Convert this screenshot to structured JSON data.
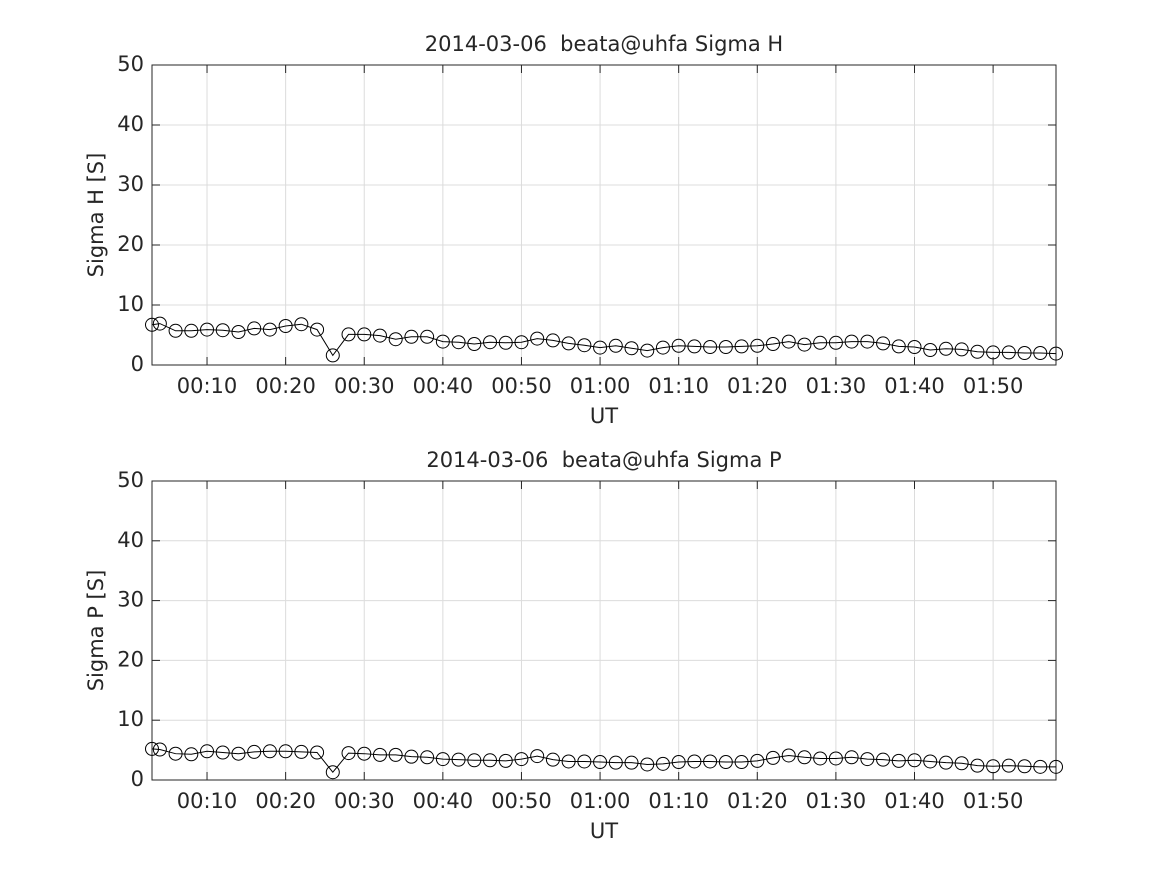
{
  "chart_data": [
    {
      "type": "line",
      "title": "2014-03-06  beata@uhfa Sigma H",
      "xlabel": "UT",
      "ylabel": "Sigma H [S]",
      "x": [
        3,
        4,
        6,
        8,
        10,
        12,
        14,
        16,
        18,
        20,
        22,
        24,
        26,
        28,
        30,
        32,
        34,
        36,
        38,
        40,
        42,
        44,
        46,
        48,
        50,
        52,
        54,
        56,
        58,
        60,
        62,
        64,
        66,
        68,
        70,
        72,
        74,
        76,
        78,
        80,
        82,
        84,
        86,
        88,
        90,
        92,
        94,
        96,
        98,
        100,
        102,
        104,
        106,
        108,
        110,
        112,
        114,
        116,
        118
      ],
      "series": [
        {
          "color": "#000000",
          "values": [
            6.7,
            6.9,
            5.7,
            5.7,
            5.9,
            5.8,
            5.5,
            6.1,
            5.9,
            6.5,
            6.8,
            5.9,
            1.6,
            5.1,
            5.1,
            4.9,
            4.3,
            4.7,
            4.7,
            3.9,
            3.8,
            3.5,
            3.8,
            3.7,
            3.8,
            4.4,
            4.1,
            3.6,
            3.3,
            2.9,
            3.2,
            2.8,
            2.4,
            2.9,
            3.2,
            3.1,
            3.0,
            3.0,
            3.1,
            3.2,
            3.5,
            3.9,
            3.4,
            3.7,
            3.7,
            3.9,
            3.9,
            3.6,
            3.1,
            3.0,
            2.5,
            2.7,
            2.6,
            2.2,
            2.1,
            2.1,
            2.0,
            2.0,
            1.9
          ]
        }
      ],
      "xlim": [
        3,
        118
      ],
      "xticks": [
        {
          "value": 10,
          "label": "00:10"
        },
        {
          "value": 20,
          "label": "00:20"
        },
        {
          "value": 30,
          "label": "00:30"
        },
        {
          "value": 40,
          "label": "00:40"
        },
        {
          "value": 50,
          "label": "00:50"
        },
        {
          "value": 60,
          "label": "01:00"
        },
        {
          "value": 70,
          "label": "01:10"
        },
        {
          "value": 80,
          "label": "01:20"
        },
        {
          "value": 90,
          "label": "01:30"
        },
        {
          "value": 100,
          "label": "01:40"
        },
        {
          "value": 110,
          "label": "01:50"
        }
      ],
      "ylim": [
        0,
        50
      ],
      "yticks": [
        0,
        10,
        20,
        30,
        40,
        50
      ],
      "grid": true
    },
    {
      "type": "line",
      "title": "2014-03-06  beata@uhfa Sigma P",
      "xlabel": "UT",
      "ylabel": "Sigma P [S]",
      "x": [
        3,
        4,
        6,
        8,
        10,
        12,
        14,
        16,
        18,
        20,
        22,
        24,
        26,
        28,
        30,
        32,
        34,
        36,
        38,
        40,
        42,
        44,
        46,
        48,
        50,
        52,
        54,
        56,
        58,
        60,
        62,
        64,
        66,
        68,
        70,
        72,
        74,
        76,
        78,
        80,
        82,
        84,
        86,
        88,
        90,
        92,
        94,
        96,
        98,
        100,
        102,
        104,
        106,
        108,
        110,
        112,
        114,
        116,
        118
      ],
      "series": [
        {
          "color": "#000000",
          "values": [
            5.2,
            5.1,
            4.4,
            4.3,
            4.8,
            4.6,
            4.4,
            4.7,
            4.8,
            4.8,
            4.7,
            4.6,
            1.3,
            4.5,
            4.4,
            4.2,
            4.2,
            3.9,
            3.8,
            3.5,
            3.4,
            3.3,
            3.3,
            3.2,
            3.5,
            4.0,
            3.4,
            3.1,
            3.1,
            3.0,
            2.9,
            2.9,
            2.6,
            2.7,
            3.0,
            3.1,
            3.1,
            3.0,
            3.0,
            3.2,
            3.7,
            4.1,
            3.8,
            3.6,
            3.6,
            3.8,
            3.5,
            3.4,
            3.2,
            3.3,
            3.1,
            2.9,
            2.8,
            2.4,
            2.3,
            2.4,
            2.3,
            2.2,
            2.2
          ]
        }
      ],
      "xlim": [
        3,
        118
      ],
      "xticks": [
        {
          "value": 10,
          "label": "00:10"
        },
        {
          "value": 20,
          "label": "00:20"
        },
        {
          "value": 30,
          "label": "00:30"
        },
        {
          "value": 40,
          "label": "00:40"
        },
        {
          "value": 50,
          "label": "00:50"
        },
        {
          "value": 60,
          "label": "01:00"
        },
        {
          "value": 70,
          "label": "01:10"
        },
        {
          "value": 80,
          "label": "01:20"
        },
        {
          "value": 90,
          "label": "01:30"
        },
        {
          "value": 100,
          "label": "01:40"
        },
        {
          "value": 110,
          "label": "01:50"
        }
      ],
      "ylim": [
        0,
        50
      ],
      "yticks": [
        0,
        10,
        20,
        30,
        40,
        50
      ],
      "grid": true
    }
  ]
}
